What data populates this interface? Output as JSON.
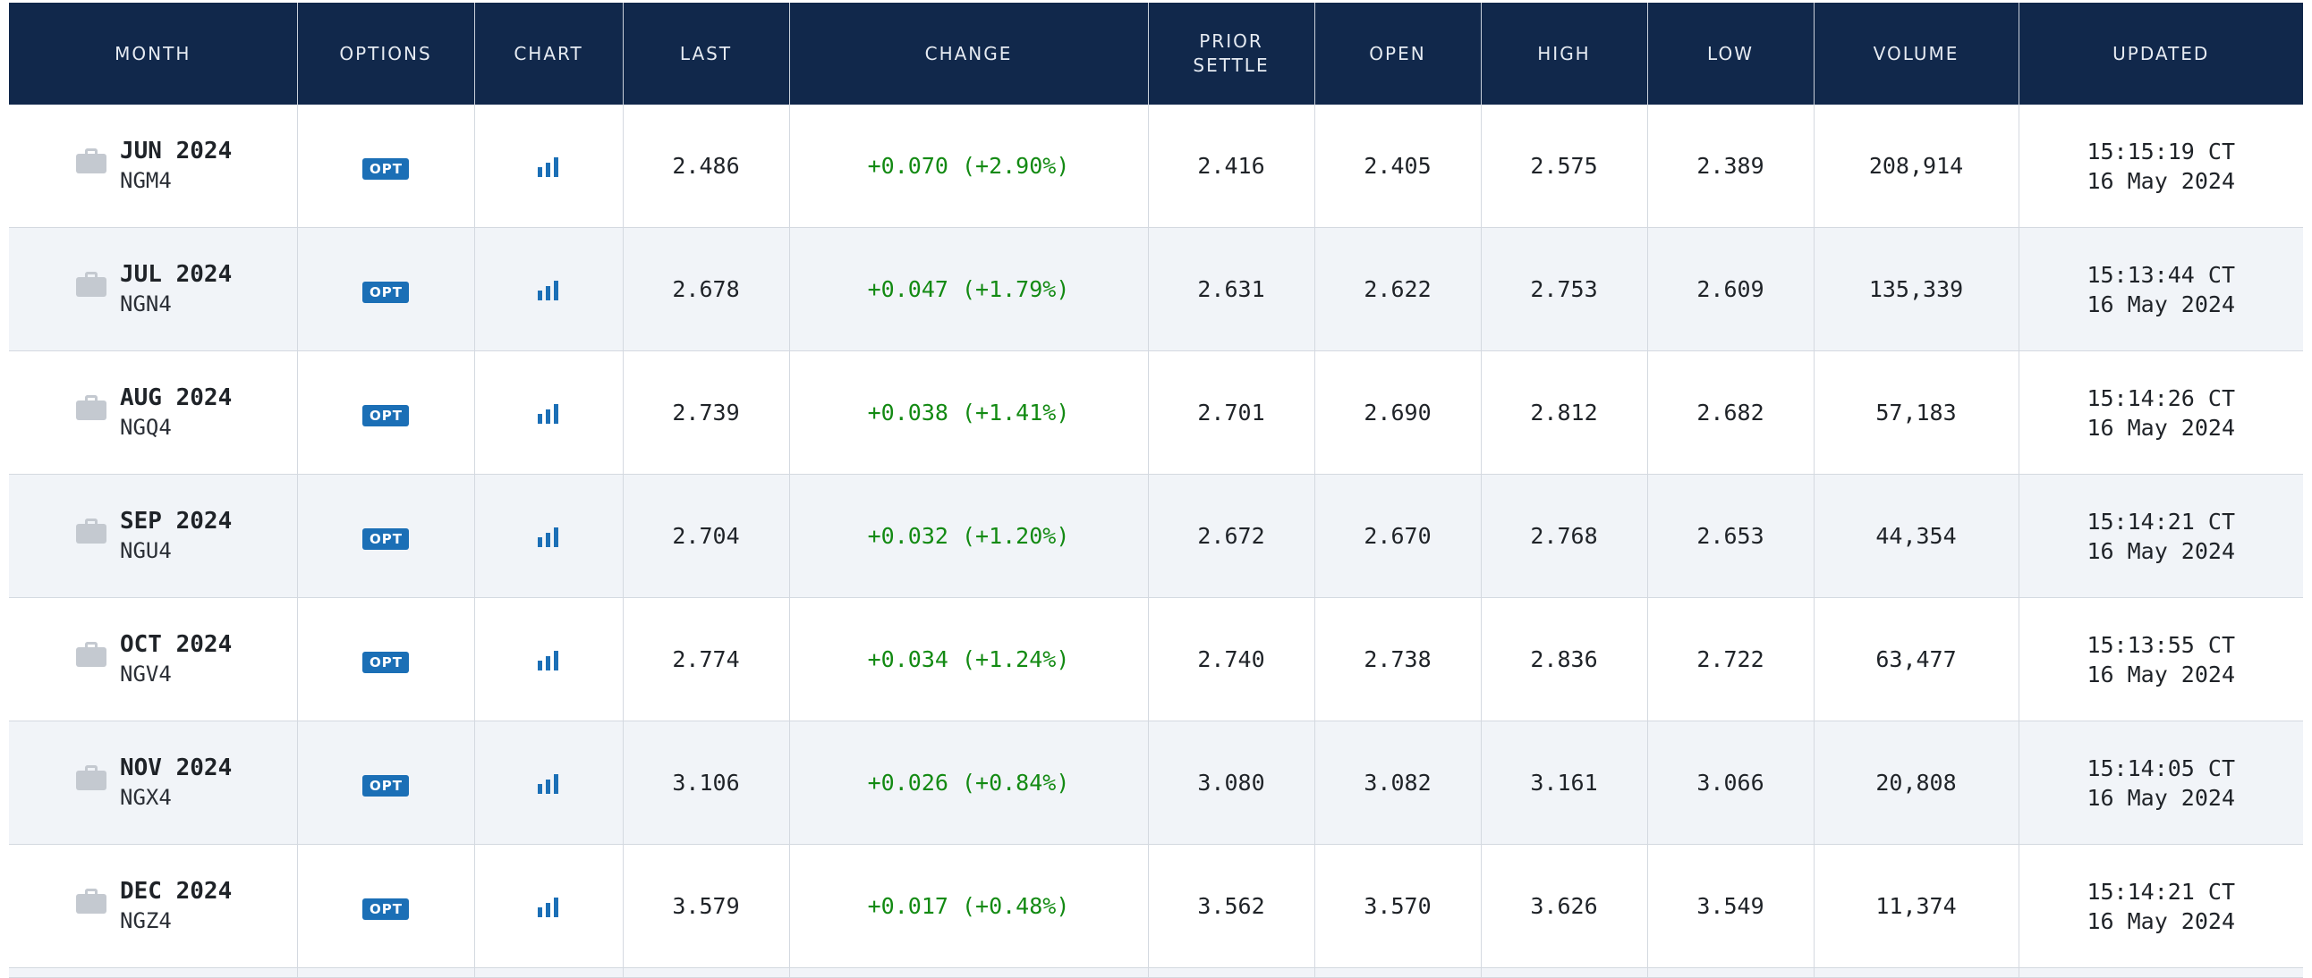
{
  "table": {
    "headers": {
      "month": "MONTH",
      "options": "OPTIONS",
      "chart": "CHART",
      "last": "LAST",
      "change": "CHANGE",
      "prior_settle_1": "PRIOR",
      "prior_settle_2": "SETTLE",
      "open": "OPEN",
      "high": "HIGH",
      "low": "LOW",
      "volume": "VOLUME",
      "updated": "UPDATED"
    },
    "icons": {
      "month": "briefcase-icon",
      "chart": "bar-chart-icon"
    },
    "colors": {
      "header_bg": "#11284b",
      "positive_change": "#138a13",
      "opt_badge": "#1b6fb6",
      "row_alt": "#f1f4f8"
    },
    "rows": [
      {
        "month": "JUN 2024",
        "code": "NGM4",
        "opt": "OPT",
        "last": "2.486",
        "change": "+0.070 (+2.90%)",
        "prior_settle": "2.416",
        "open": "2.405",
        "high": "2.575",
        "low": "2.389",
        "volume": "208,914",
        "time": "15:15:19 CT",
        "date": "16 May 2024"
      },
      {
        "month": "JUL 2024",
        "code": "NGN4",
        "opt": "OPT",
        "last": "2.678",
        "change": "+0.047 (+1.79%)",
        "prior_settle": "2.631",
        "open": "2.622",
        "high": "2.753",
        "low": "2.609",
        "volume": "135,339",
        "time": "15:13:44 CT",
        "date": "16 May 2024"
      },
      {
        "month": "AUG 2024",
        "code": "NGQ4",
        "opt": "OPT",
        "last": "2.739",
        "change": "+0.038 (+1.41%)",
        "prior_settle": "2.701",
        "open": "2.690",
        "high": "2.812",
        "low": "2.682",
        "volume": "57,183",
        "time": "15:14:26 CT",
        "date": "16 May 2024"
      },
      {
        "month": "SEP 2024",
        "code": "NGU4",
        "opt": "OPT",
        "last": "2.704",
        "change": "+0.032 (+1.20%)",
        "prior_settle": "2.672",
        "open": "2.670",
        "high": "2.768",
        "low": "2.653",
        "volume": "44,354",
        "time": "15:14:21 CT",
        "date": "16 May 2024"
      },
      {
        "month": "OCT 2024",
        "code": "NGV4",
        "opt": "OPT",
        "last": "2.774",
        "change": "+0.034 (+1.24%)",
        "prior_settle": "2.740",
        "open": "2.738",
        "high": "2.836",
        "low": "2.722",
        "volume": "63,477",
        "time": "15:13:55 CT",
        "date": "16 May 2024"
      },
      {
        "month": "NOV 2024",
        "code": "NGX4",
        "opt": "OPT",
        "last": "3.106",
        "change": "+0.026 (+0.84%)",
        "prior_settle": "3.080",
        "open": "3.082",
        "high": "3.161",
        "low": "3.066",
        "volume": "20,808",
        "time": "15:14:05 CT",
        "date": "16 May 2024"
      },
      {
        "month": "DEC 2024",
        "code": "NGZ4",
        "opt": "OPT",
        "last": "3.579",
        "change": "+0.017 (+0.48%)",
        "prior_settle": "3.562",
        "open": "3.570",
        "high": "3.626",
        "low": "3.549",
        "volume": "11,374",
        "time": "15:14:21 CT",
        "date": "16 May 2024"
      }
    ]
  }
}
